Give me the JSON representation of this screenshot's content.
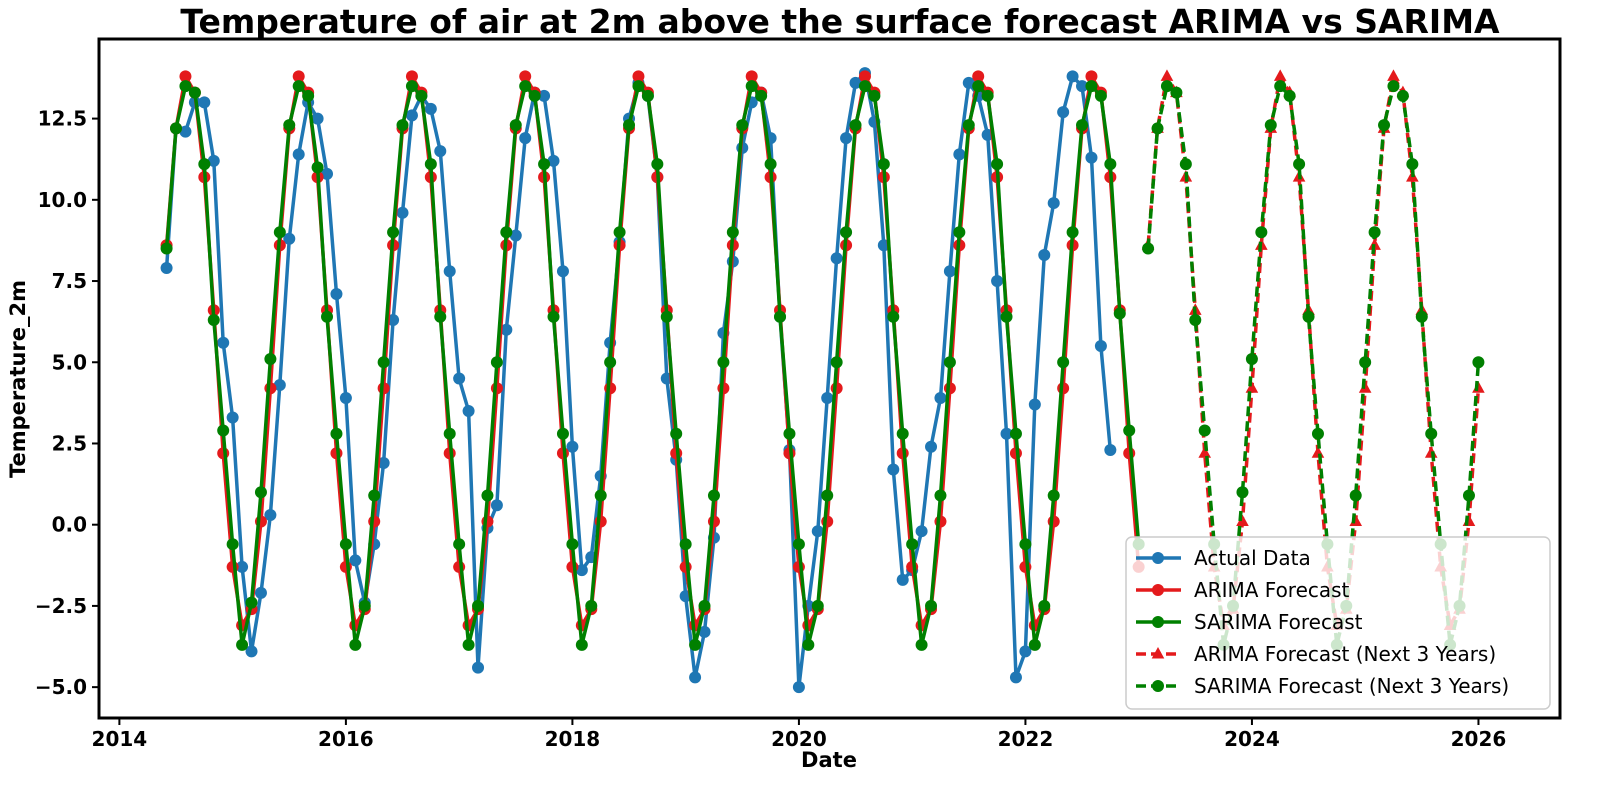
{
  "chart_data": {
    "type": "line",
    "title": "Temperature of air at 2m above the surface forecast ARIMA  vs SARIMA",
    "xlabel": "Date",
    "ylabel": "Temperature_2m",
    "xlim": [
      2013.82,
      2026.72
    ],
    "ylim": [
      -5.95,
      14.95
    ],
    "x_ticks": [
      2014,
      2016,
      2018,
      2020,
      2022,
      2024,
      2026
    ],
    "x_tick_labels": [
      "2014",
      "2016",
      "2018",
      "2020",
      "2022",
      "2024",
      "2026"
    ],
    "y_ticks": [
      -5.0,
      -2.5,
      0.0,
      2.5,
      5.0,
      7.5,
      10.0,
      12.5
    ],
    "y_tick_labels": [
      "−5.0",
      "−2.5",
      "0.0",
      "2.5",
      "5.0",
      "7.5",
      "10.0",
      "12.5"
    ],
    "grid": false,
    "legend": {
      "placement": "lower-right"
    },
    "x_start": 2014.4167,
    "x_step": 0.08333,
    "series": [
      {
        "name": "Actual Data",
        "color": "#1f77b4",
        "style": "solid",
        "marker": "circle",
        "start_index": 0,
        "values": [
          7.9,
          12.2,
          12.1,
          13.0,
          13.0,
          11.2,
          5.6,
          3.3,
          -1.3,
          -3.9,
          -2.1,
          0.3,
          4.3,
          8.8,
          11.4,
          13.0,
          12.5,
          10.8,
          7.1,
          3.9,
          -1.1,
          -2.4,
          -0.6,
          1.9,
          6.3,
          9.6,
          12.6,
          13.2,
          12.8,
          11.5,
          7.8,
          4.5,
          3.5,
          -4.4,
          -0.1,
          0.6,
          6.0,
          8.9,
          11.9,
          13.3,
          13.2,
          11.2,
          7.8,
          2.4,
          -1.4,
          -1.0,
          1.5,
          5.6,
          8.7,
          12.5,
          13.6,
          13.2,
          10.7,
          4.5,
          2.0,
          -2.2,
          -4.7,
          -3.3,
          -0.4,
          5.9,
          8.1,
          11.6,
          13.0,
          13.3,
          11.9,
          6.4,
          2.3,
          -5.0,
          -2.5,
          -0.2,
          3.9,
          8.2,
          11.9,
          13.6,
          13.9,
          12.4,
          8.6,
          1.7,
          -1.7,
          -1.4,
          -0.2,
          2.4,
          3.9,
          7.8,
          11.4,
          13.6,
          13.2,
          12.0,
          7.5,
          2.8,
          -4.7,
          -3.9,
          3.7,
          8.3,
          9.9,
          12.7,
          13.8,
          13.5,
          11.3,
          5.5,
          2.3
        ]
      },
      {
        "name": "ARIMA Forecast",
        "color": "#e41a1c",
        "style": "solid",
        "marker": "circle",
        "start_index": 0,
        "values": [
          8.6,
          12.2,
          13.8,
          13.3,
          10.7,
          6.6,
          2.2,
          -1.3,
          -3.1,
          -2.6,
          0.1,
          4.2,
          8.6,
          12.2,
          13.8,
          13.3,
          10.7,
          6.6,
          2.2,
          -1.3,
          -3.1,
          -2.6,
          0.1,
          4.2,
          8.6,
          12.2,
          13.8,
          13.3,
          10.7,
          6.6,
          2.2,
          -1.3,
          -3.1,
          -2.6,
          0.1,
          4.2,
          8.6,
          12.2,
          13.8,
          13.3,
          10.7,
          6.6,
          2.2,
          -1.3,
          -3.1,
          -2.6,
          0.1,
          4.2,
          8.6,
          12.2,
          13.8,
          13.3,
          10.7,
          6.6,
          2.2,
          -1.3,
          -3.1,
          -2.6,
          0.1,
          4.2,
          8.6,
          12.2,
          13.8,
          13.3,
          10.7,
          6.6,
          2.2,
          -1.3,
          -3.1,
          -2.6,
          0.1,
          4.2,
          8.6,
          12.2,
          13.8,
          13.3,
          10.7,
          6.6,
          2.2,
          -1.3,
          -3.1,
          -2.6,
          0.1,
          4.2,
          8.6,
          12.2,
          13.8,
          13.3,
          10.7,
          6.6,
          2.2,
          -1.3,
          -3.1,
          -2.6,
          0.1,
          4.2,
          8.6,
          12.2,
          13.8,
          13.3,
          10.7,
          6.6,
          2.2,
          -1.3
        ]
      },
      {
        "name": "SARIMA Forecast",
        "color": "#008000",
        "style": "solid",
        "marker": "circle",
        "start_index": 0,
        "values": [
          8.5,
          12.2,
          13.5,
          13.3,
          11.1,
          6.3,
          2.9,
          -0.6,
          -3.7,
          -2.4,
          1.0,
          5.1,
          9.0,
          12.3,
          13.5,
          13.2,
          11.0,
          6.4,
          2.8,
          -0.6,
          -3.7,
          -2.5,
          0.9,
          5.0,
          9.0,
          12.3,
          13.5,
          13.2,
          11.1,
          6.4,
          2.8,
          -0.6,
          -3.7,
          -2.5,
          0.9,
          5.0,
          9.0,
          12.3,
          13.5,
          13.2,
          11.1,
          6.4,
          2.8,
          -0.6,
          -3.7,
          -2.5,
          0.9,
          5.0,
          9.0,
          12.3,
          13.5,
          13.2,
          11.1,
          6.4,
          2.8,
          -0.6,
          -3.7,
          -2.5,
          0.9,
          5.0,
          9.0,
          12.3,
          13.5,
          13.2,
          11.1,
          6.4,
          2.8,
          -0.6,
          -3.7,
          -2.5,
          0.9,
          5.0,
          9.0,
          12.3,
          13.5,
          13.2,
          11.1,
          6.4,
          2.8,
          -0.6,
          -3.7,
          -2.5,
          0.9,
          5.0,
          9.0,
          12.3,
          13.5,
          13.2,
          11.1,
          6.4,
          2.8,
          -0.6,
          -3.7,
          -2.5,
          0.9,
          5.0,
          9.0,
          12.3,
          13.5,
          13.2,
          11.1,
          6.5,
          2.9,
          -0.6
        ]
      },
      {
        "name": "ARIMA Forecast (Next 3 Years)",
        "color": "#e41a1c",
        "style": "dashed",
        "marker": "triangle",
        "start_index": 104,
        "values": [
          8.6,
          12.2,
          13.8,
          13.3,
          10.7,
          6.6,
          2.2,
          -1.3,
          -3.1,
          -2.6,
          0.1,
          4.2,
          8.6,
          12.2,
          13.8,
          13.3,
          10.7,
          6.6,
          2.2,
          -1.3,
          -3.1,
          -2.6,
          0.1,
          4.2,
          8.6,
          12.2,
          13.8,
          13.3,
          10.7,
          6.6,
          2.2,
          -1.3,
          -3.1,
          -2.6,
          0.1,
          4.2
        ]
      },
      {
        "name": "SARIMA Forecast (Next 3 Years)",
        "color": "#008000",
        "style": "dashed",
        "marker": "circle",
        "start_index": 104,
        "values": [
          8.5,
          12.2,
          13.5,
          13.3,
          11.1,
          6.3,
          2.9,
          -0.6,
          -3.7,
          -2.5,
          1.0,
          5.1,
          9.0,
          12.3,
          13.5,
          13.2,
          11.1,
          6.4,
          2.8,
          -0.6,
          -3.7,
          -2.5,
          0.9,
          5.0,
          9.0,
          12.3,
          13.5,
          13.2,
          11.1,
          6.4,
          2.8,
          -0.6,
          -3.7,
          -2.5,
          0.9,
          5.0
        ]
      }
    ]
  }
}
